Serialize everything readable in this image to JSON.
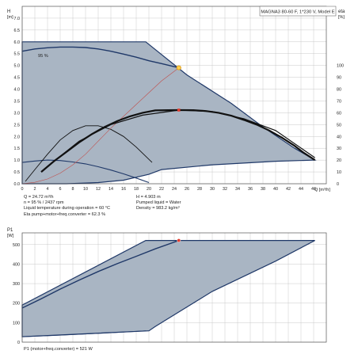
{
  "colors": {
    "envelope_fill": "#a9b5c3",
    "envelope_edge": "#1f3868",
    "grid": "#c9c9c9",
    "efficiency": "#c0504d",
    "operating_point": "#e23b2e",
    "operating_point_ring": "#e0a020",
    "curve": "#111111"
  },
  "chart_data": [
    {
      "type": "line",
      "title": "MAGNA3 80-60 F, 1*230 V, Model E",
      "ylabel_top": "H",
      "ylabel_unit": "[m]",
      "y2label_top": "eta",
      "y2label_unit": "[%]",
      "xlabel": "Q [m³/h]",
      "xlim": [
        0,
        48
      ],
      "ylim": [
        0,
        7.5
      ],
      "y2lim": [
        0,
        150
      ],
      "xticks": [
        "0",
        "2",
        "4",
        "6",
        "8",
        "10",
        "12",
        "14",
        "16",
        "18",
        "20",
        "22",
        "24",
        "26",
        "28",
        "30",
        "32",
        "34",
        "36",
        "38",
        "40",
        "42",
        "44",
        "46"
      ],
      "yticks": [
        "0.0",
        "0.5",
        "1.0",
        "1.5",
        "2.0",
        "2.5",
        "3.0",
        "3.5",
        "4.0",
        "4.5",
        "5.0",
        "5.5",
        "6.0",
        "6.5",
        "7.0"
      ],
      "y2ticks": [
        "0",
        "10",
        "20",
        "30",
        "40",
        "50",
        "60",
        "70",
        "80",
        "90",
        "100"
      ],
      "grid": true,
      "speed_label": "95 %",
      "envelope": {
        "upper": [
          [
            0,
            6.0
          ],
          [
            19.5,
            6.0
          ],
          [
            26,
            4.6
          ],
          [
            33,
            3.4
          ],
          [
            38,
            2.4
          ],
          [
            43,
            1.5
          ],
          [
            46.2,
            1.0
          ]
        ],
        "lower": [
          [
            46.2,
            1.0
          ],
          [
            40,
            0.95
          ],
          [
            30,
            0.8
          ],
          [
            22,
            0.6
          ],
          [
            20,
            0.4
          ],
          [
            16,
            0.15
          ],
          [
            12,
            0.05
          ],
          [
            7,
            0.0
          ],
          [
            0,
            0.0
          ]
        ]
      },
      "series": [
        {
          "name": "95 %",
          "x": [
            0,
            2,
            4,
            6,
            8,
            10,
            12,
            14,
            16,
            18,
            20,
            22,
            24.72
          ],
          "y": [
            5.6,
            5.7,
            5.75,
            5.78,
            5.78,
            5.76,
            5.7,
            5.6,
            5.48,
            5.35,
            5.2,
            5.08,
            4.903
          ]
        },
        {
          "x": [
            0,
            2,
            4,
            6,
            8,
            10,
            12,
            14,
            16,
            18,
            20
          ],
          "y": [
            0.9,
            0.96,
            1.0,
            0.98,
            0.92,
            0.84,
            0.72,
            0.58,
            0.42,
            0.24,
            0.05
          ]
        },
        {
          "x": [
            0.5,
            2,
            4,
            6,
            8,
            10,
            12,
            14,
            16,
            18,
            20.5
          ],
          "y": [
            0.1,
            0.6,
            1.25,
            1.85,
            2.25,
            2.45,
            2.45,
            2.3,
            2.0,
            1.55,
            0.9
          ]
        },
        {
          "x": [
            0,
            2,
            4,
            6,
            8,
            10,
            12,
            14,
            16,
            18,
            20,
            22,
            24.72
          ],
          "y": [
            0,
            0.06,
            0.2,
            0.45,
            0.8,
            1.25,
            1.8,
            2.35,
            2.85,
            3.35,
            3.85,
            4.35,
            4.903
          ]
        }
      ],
      "eta_series": {
        "x": [
          3,
          5,
          7,
          9,
          11,
          13,
          15,
          17,
          19,
          21,
          23,
          24.72,
          27,
          29,
          31,
          33,
          35,
          37,
          39,
          41,
          43,
          44.5,
          46.2
        ],
        "y": [
          10,
          19,
          27,
          35,
          42,
          48,
          53,
          57,
          60,
          62,
          62.2,
          62.3,
          62.2,
          61.5,
          60,
          57.5,
          54,
          50,
          45,
          39,
          32,
          26,
          20
        ]
      },
      "eta_upper": {
        "x": [
          5,
          9,
          14,
          19,
          24.72,
          30,
          35,
          40,
          46.2
        ],
        "y": [
          19,
          36,
          50,
          58,
          62.3,
          61,
          55,
          45,
          22
        ]
      },
      "operating_point": {
        "x": 24.72,
        "y": 4.903,
        "eta": 62.3
      }
    },
    {
      "type": "line",
      "ylabel_top": "P1",
      "ylabel_unit": "[W]",
      "xlim": [
        0,
        48
      ],
      "ylim": [
        0,
        560
      ],
      "yticks": [
        "0",
        "100",
        "200",
        "300",
        "400",
        "500"
      ],
      "grid": true,
      "envelope": {
        "upper": [
          [
            0,
            190
          ],
          [
            19.5,
            521
          ],
          [
            46.2,
            521
          ]
        ],
        "lower": [
          [
            46.2,
            521
          ],
          [
            40,
            415
          ],
          [
            30,
            260
          ],
          [
            21,
            80
          ],
          [
            20,
            58
          ],
          [
            0,
            28
          ]
        ]
      },
      "series": [
        {
          "x": [
            0,
            3,
            6,
            9,
            12,
            15,
            18,
            21,
            24.72
          ],
          "y": [
            175,
            222,
            272,
            318,
            362,
            402,
            440,
            478,
            521
          ]
        },
        {
          "x": [
            0,
            5,
            10,
            15,
            19.5
          ],
          "y": [
            28,
            34,
            42,
            50,
            58
          ]
        }
      ],
      "operating_point": {
        "x": 24.72,
        "y": 521
      }
    }
  ],
  "info": {
    "q": "Q = 24.72 m³/h",
    "h": "H = 4.903 m",
    "n": "n = 95 % / 2437 rpm",
    "pumped_liquid": "Pumped liquid = Water",
    "liquid_temp": "Liquid temperature during operation = 60 °C",
    "density": "Density = 983.2 kg/m³",
    "eta": "Eta pump+motor+freq.converter = 62.3 %",
    "p1": "P1 (motor+freq.converter) = 521 W"
  }
}
